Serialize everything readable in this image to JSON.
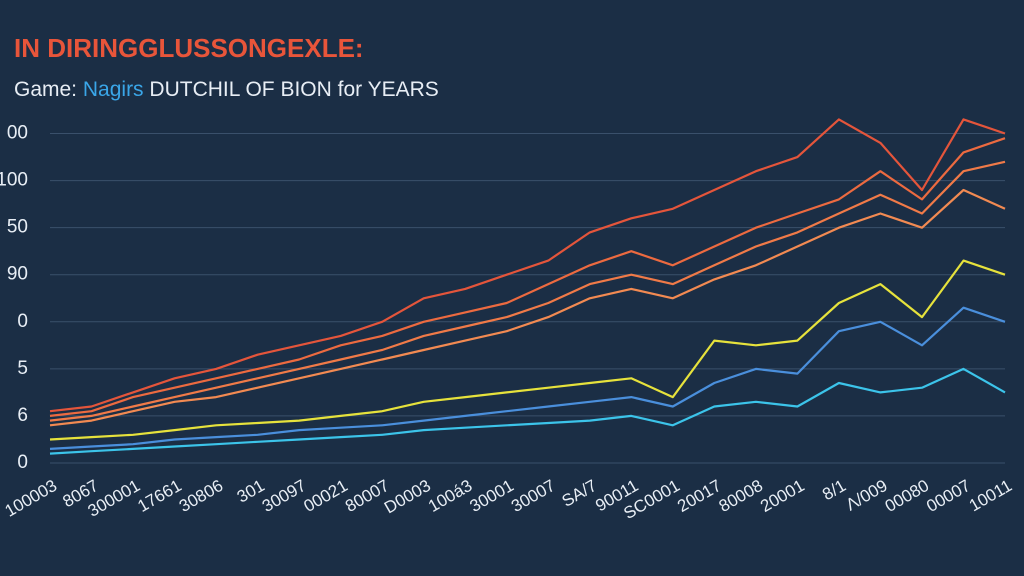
{
  "chart_data": {
    "type": "line",
    "title": "IN DIRINGGLUSSONGEXLE:",
    "subtitle": [
      "Game:",
      "Nagirs",
      "DUTCHIL OF BION for YEARS"
    ],
    "categories": [
      "100003",
      "8067",
      "300001",
      "17661",
      "30806",
      "301",
      "30097",
      "00021",
      "80007",
      "D0003",
      "100á3",
      "30001",
      "30007",
      "SA/7",
      "90011",
      "SC0001",
      "20017",
      "80008",
      "20001",
      "8/1",
      "Λ/009",
      "00080",
      "00007",
      "10011"
    ],
    "ylim": [
      0,
      7.5
    ],
    "yticks": [
      {
        "value": 0,
        "label": "0"
      },
      {
        "value": 1,
        "label": "6"
      },
      {
        "value": 2,
        "label": "5"
      },
      {
        "value": 3,
        "label": "0"
      },
      {
        "value": 4,
        "label": "90"
      },
      {
        "value": 5,
        "label": "50"
      },
      {
        "value": 6,
        "label": "100"
      },
      {
        "value": 7,
        "label": "00"
      }
    ],
    "grid": true,
    "series": [
      {
        "color": "#e4553b",
        "values": [
          1.1,
          1.2,
          1.5,
          1.8,
          2.0,
          2.3,
          2.5,
          2.7,
          3.0,
          3.5,
          3.7,
          4.0,
          4.3,
          4.9,
          5.2,
          5.4,
          5.8,
          6.2,
          6.5,
          7.3,
          6.8,
          5.8,
          7.3,
          7.0
        ]
      },
      {
        "color": "#ec6a40",
        "values": [
          1.0,
          1.1,
          1.4,
          1.6,
          1.8,
          2.0,
          2.2,
          2.5,
          2.7,
          3.0,
          3.2,
          3.4,
          3.8,
          4.2,
          4.5,
          4.2,
          4.6,
          5.0,
          5.3,
          5.6,
          6.2,
          5.6,
          6.6,
          6.9
        ]
      },
      {
        "color": "#f07a48",
        "values": [
          0.9,
          1.0,
          1.2,
          1.4,
          1.6,
          1.8,
          2.0,
          2.2,
          2.4,
          2.7,
          2.9,
          3.1,
          3.4,
          3.8,
          4.0,
          3.8,
          4.2,
          4.6,
          4.9,
          5.3,
          5.7,
          5.3,
          6.2,
          6.4
        ]
      },
      {
        "color": "#f28a52",
        "values": [
          0.8,
          0.9,
          1.1,
          1.3,
          1.4,
          1.6,
          1.8,
          2.0,
          2.2,
          2.4,
          2.6,
          2.8,
          3.1,
          3.5,
          3.7,
          3.5,
          3.9,
          4.2,
          4.6,
          5.0,
          5.3,
          5.0,
          5.8,
          5.4
        ]
      },
      {
        "color": "#e6e23c",
        "values": [
          0.5,
          0.55,
          0.6,
          0.7,
          0.8,
          0.85,
          0.9,
          1.0,
          1.1,
          1.3,
          1.4,
          1.5,
          1.6,
          1.7,
          1.8,
          1.4,
          2.6,
          2.5,
          2.6,
          3.4,
          3.8,
          3.1,
          4.3,
          4.0
        ]
      },
      {
        "color": "#4a8fdc",
        "values": [
          0.3,
          0.35,
          0.4,
          0.5,
          0.55,
          0.6,
          0.7,
          0.75,
          0.8,
          0.9,
          1.0,
          1.1,
          1.2,
          1.3,
          1.4,
          1.2,
          1.7,
          2.0,
          1.9,
          2.8,
          3.0,
          2.5,
          3.3,
          3.0
        ]
      },
      {
        "color": "#3cc4ea",
        "values": [
          0.2,
          0.25,
          0.3,
          0.35,
          0.4,
          0.45,
          0.5,
          0.55,
          0.6,
          0.7,
          0.75,
          0.8,
          0.85,
          0.9,
          1.0,
          0.8,
          1.2,
          1.3,
          1.2,
          1.7,
          1.5,
          1.6,
          2.0,
          1.5
        ]
      }
    ]
  }
}
